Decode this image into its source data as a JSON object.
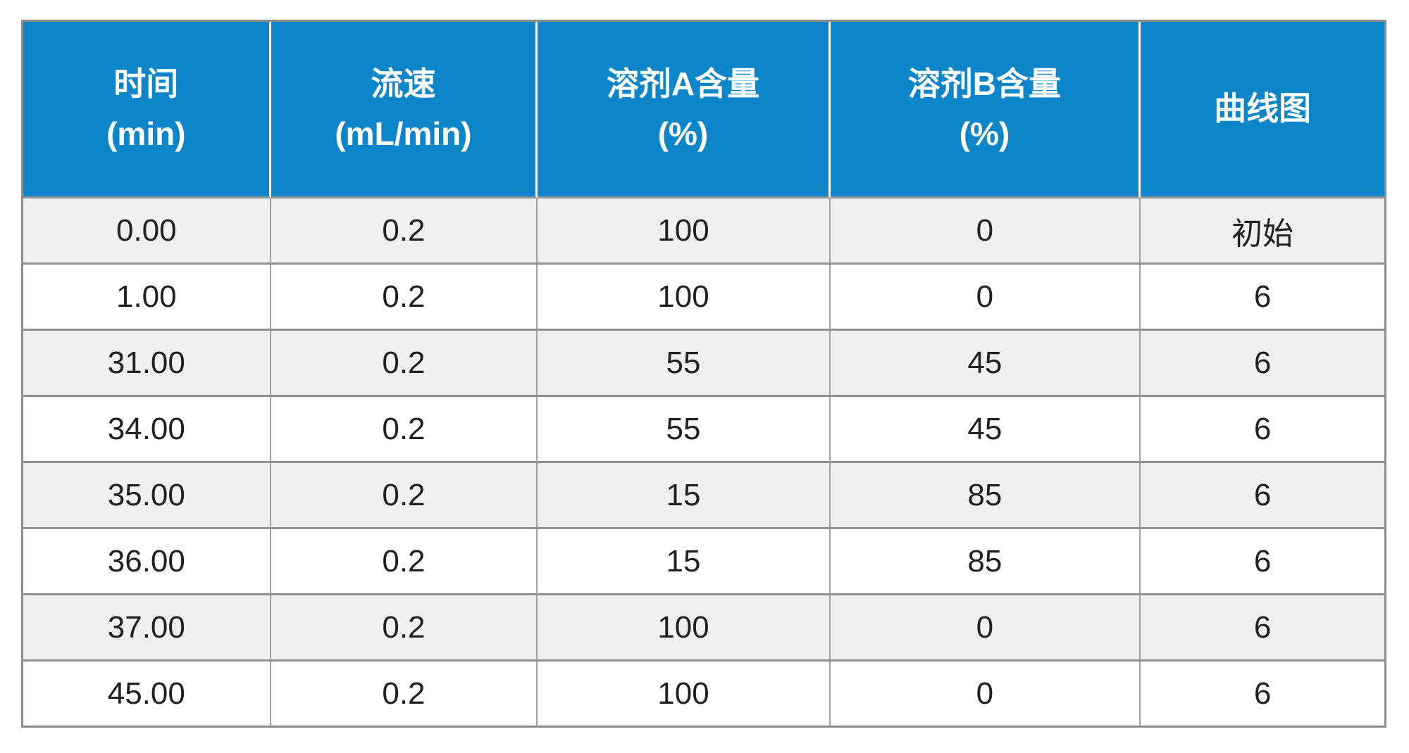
{
  "table": {
    "columns": [
      {
        "title": "时间",
        "unit": "(min)"
      },
      {
        "title": "流速",
        "unit": "(mL/min)"
      },
      {
        "title": "溶剂A含量",
        "unit": "(%)"
      },
      {
        "title": "溶剂B含量",
        "unit": "(%)"
      },
      {
        "title": "曲线图",
        "unit": ""
      }
    ],
    "rows": [
      [
        "0.00",
        "0.2",
        "100",
        "0",
        "初始"
      ],
      [
        "1.00",
        "0.2",
        "100",
        "0",
        "6"
      ],
      [
        "31.00",
        "0.2",
        "55",
        "45",
        "6"
      ],
      [
        "34.00",
        "0.2",
        "55",
        "45",
        "6"
      ],
      [
        "35.00",
        "0.2",
        "15",
        "85",
        "6"
      ],
      [
        "36.00",
        "0.2",
        "15",
        "85",
        "6"
      ],
      [
        "37.00",
        "0.2",
        "100",
        "0",
        "6"
      ],
      [
        "45.00",
        "0.2",
        "100",
        "0",
        "6"
      ]
    ],
    "colors": {
      "header_bg": "#0c86c9",
      "header_text": "#ffffff",
      "stripe_row_bg": "#f0f0f1",
      "plain_row_bg": "#ffffff",
      "outer_border": "#8c8c8c",
      "inner_border": "#909090",
      "cell_text": "#212121"
    }
  }
}
